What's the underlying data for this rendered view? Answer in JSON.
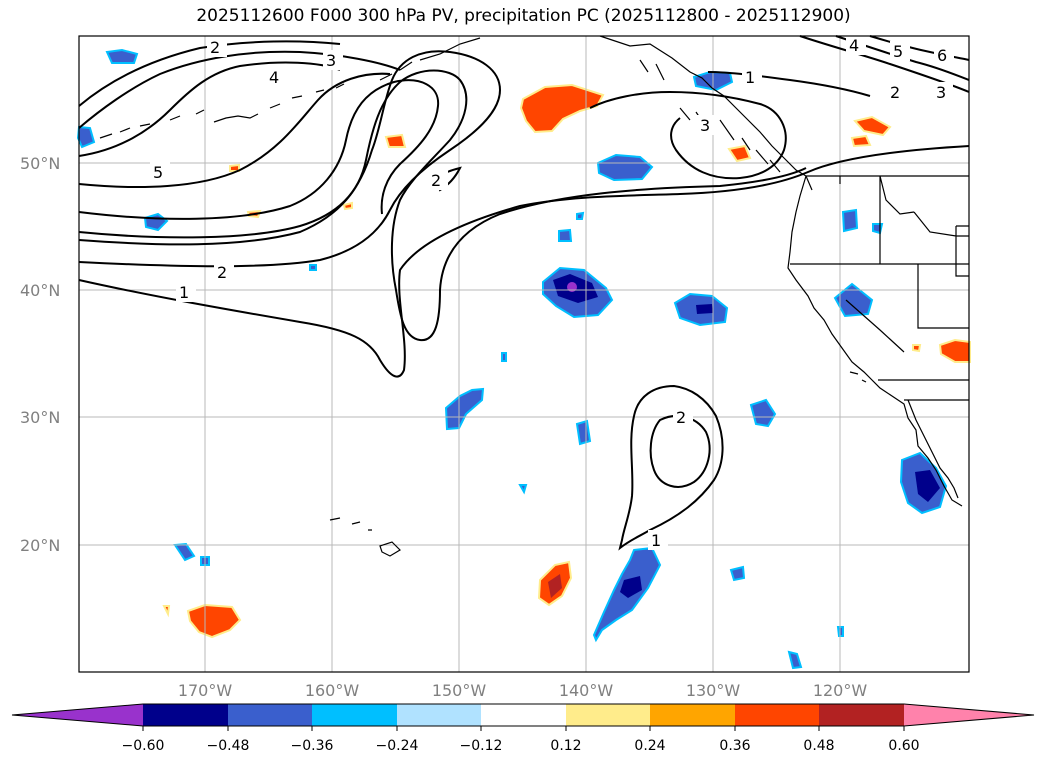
{
  "title": "2025112600 F000 300 hPa PV, precipitation PC (2025112800 - 2025112900)",
  "map": {
    "latitude_labels": [
      "50°N",
      "40°N",
      "30°N",
      "20°N"
    ],
    "longitude_labels": [
      "170°W",
      "160°W",
      "150°W",
      "140°W",
      "130°W",
      "120°W"
    ],
    "pv_contour_labels": [
      "2",
      "3",
      "4",
      "5",
      "2",
      "1",
      "2",
      "1",
      "3",
      "1",
      "2",
      "4",
      "5",
      "6",
      "2",
      "3"
    ]
  },
  "colorbar": {
    "ticks": [
      "−0.60",
      "−0.48",
      "−0.36",
      "−0.24",
      "−0.12",
      "0.12",
      "0.24",
      "0.36",
      "0.48",
      "0.60"
    ],
    "colors": [
      "#9932CC",
      "#00008B",
      "#3A5FCD",
      "#00BFFF",
      "#B0E2FF",
      "#FFFFFF",
      "#FFEC8B",
      "#FFA500",
      "#FF4500",
      "#B22222",
      "#FF82AB"
    ]
  }
}
